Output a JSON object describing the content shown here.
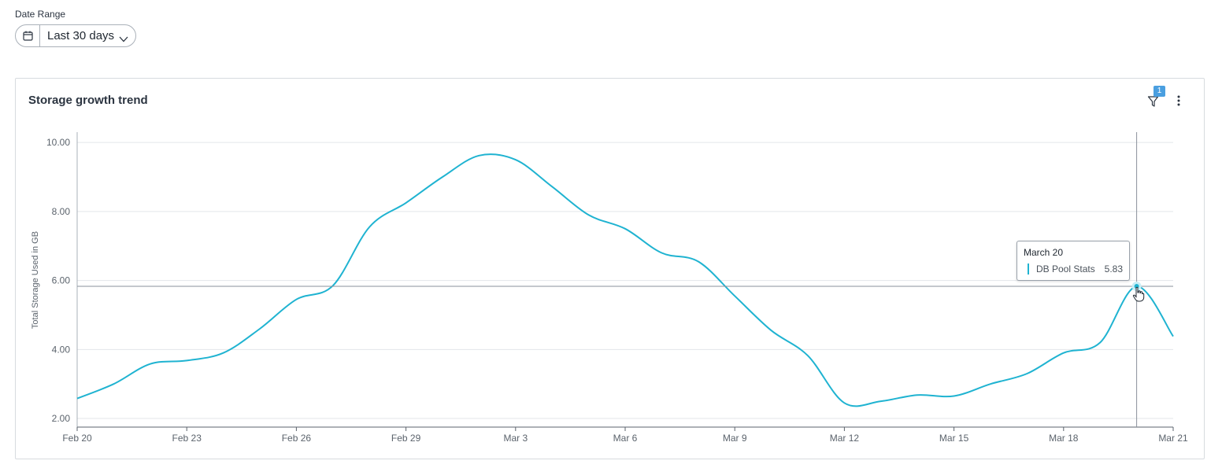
{
  "filters": {
    "date_range_label": "Date Range",
    "date_range_value": "Last 30 days"
  },
  "card": {
    "title": "Storage growth trend",
    "filter_count": "1"
  },
  "tooltip": {
    "date": "March 20",
    "series": "DB Pool Stats",
    "value": "5.83"
  },
  "icons": {
    "date": "calendar-icon",
    "dropdown": "chevron-down-icon",
    "filter": "filter-icon",
    "menu": "more-vertical-icon",
    "pointer": "hand-pointer-icon"
  },
  "colors": {
    "series": "#1fb3d1",
    "grid": "#e3e6e9",
    "axis": "#5b636c",
    "badge": "#4a9fe0"
  },
  "chart_data": {
    "type": "line",
    "title": "Storage growth trend",
    "xlabel": "",
    "ylabel": "Total Storage Used in GB",
    "ylim": [
      1.75,
      10.3
    ],
    "yticks": [
      "2.00",
      "4.00",
      "6.00",
      "8.00",
      "10.00"
    ],
    "ytick_values": [
      2,
      4,
      6,
      8,
      10
    ],
    "xticks": [
      "Feb 20",
      "Feb 23",
      "Feb 26",
      "Feb 29",
      "Mar 3",
      "Mar 6",
      "Mar 9",
      "Mar 12",
      "Mar 15",
      "Mar 18",
      "Mar 21"
    ],
    "xtick_days": [
      0,
      3,
      6,
      9,
      12,
      15,
      18,
      21,
      24,
      27,
      30
    ],
    "grid": true,
    "series": [
      {
        "name": "DB Pool Stats",
        "x": [
          "Feb 20",
          "Feb 21",
          "Feb 22",
          "Feb 23",
          "Feb 24",
          "Feb 25",
          "Feb 26",
          "Feb 27",
          "Feb 28",
          "Feb 29",
          "Mar 1",
          "Mar 2",
          "Mar 3",
          "Mar 4",
          "Mar 5",
          "Mar 6",
          "Mar 7",
          "Mar 8",
          "Mar 9",
          "Mar 10",
          "Mar 11",
          "Mar 12",
          "Mar 13",
          "Mar 14",
          "Mar 15",
          "Mar 16",
          "Mar 17",
          "Mar 18",
          "Mar 19",
          "Mar 20",
          "Mar 21"
        ],
        "days": [
          0,
          1,
          2,
          3,
          4,
          5,
          6,
          7,
          8,
          9,
          10,
          11,
          12,
          13,
          14,
          15,
          16,
          17,
          18,
          19,
          20,
          21,
          22,
          23,
          24,
          25,
          26,
          27,
          28,
          29,
          30
        ],
        "values": [
          2.58,
          3.0,
          3.58,
          3.68,
          3.9,
          4.6,
          5.45,
          5.85,
          7.55,
          8.25,
          9.0,
          9.62,
          9.5,
          8.72,
          7.9,
          7.5,
          6.8,
          6.55,
          5.55,
          4.55,
          3.82,
          2.45,
          2.5,
          2.68,
          2.65,
          3.0,
          3.3,
          3.9,
          4.2,
          5.83,
          4.38
        ]
      }
    ],
    "crosshair": {
      "x": "Mar 20",
      "day": 29,
      "y": 5.83
    },
    "legend": "none"
  }
}
